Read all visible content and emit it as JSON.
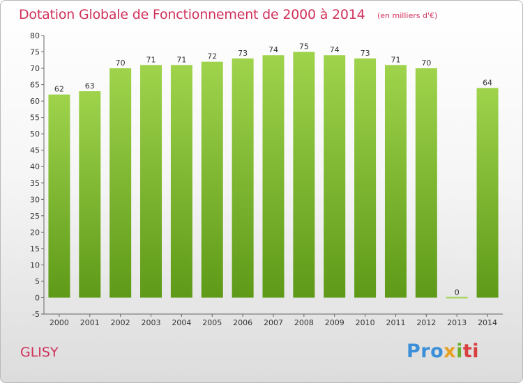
{
  "title": "Dotation Globale de Fonctionnement de 2000 à 2014",
  "subtitle": "(en milliers d'€)",
  "commune": "GLISY",
  "logo": {
    "p1": "Pro",
    "p2": "x",
    "p3": "i",
    "p4": "ti"
  },
  "colors": {
    "bar_top": "#9fd34c",
    "bar_bottom": "#5e9a18",
    "title": "#d0305a"
  },
  "chart_data": {
    "type": "bar",
    "title": "Dotation Globale de Fonctionnement de 2000 à 2014",
    "subtitle": "(en milliers d'€)",
    "categories": [
      "2000",
      "2001",
      "2002",
      "2003",
      "2004",
      "2005",
      "2006",
      "2007",
      "2008",
      "2009",
      "2010",
      "2011",
      "2012",
      "2013",
      "2014"
    ],
    "values": [
      62,
      63,
      70,
      71,
      71,
      72,
      73,
      74,
      75,
      74,
      73,
      71,
      70,
      0,
      64
    ],
    "ylim": [
      -5,
      80
    ],
    "yticks": [
      -5,
      0,
      5,
      10,
      15,
      20,
      25,
      30,
      35,
      40,
      45,
      50,
      55,
      60,
      65,
      70,
      75,
      80
    ],
    "grid": false,
    "legend": "none"
  }
}
